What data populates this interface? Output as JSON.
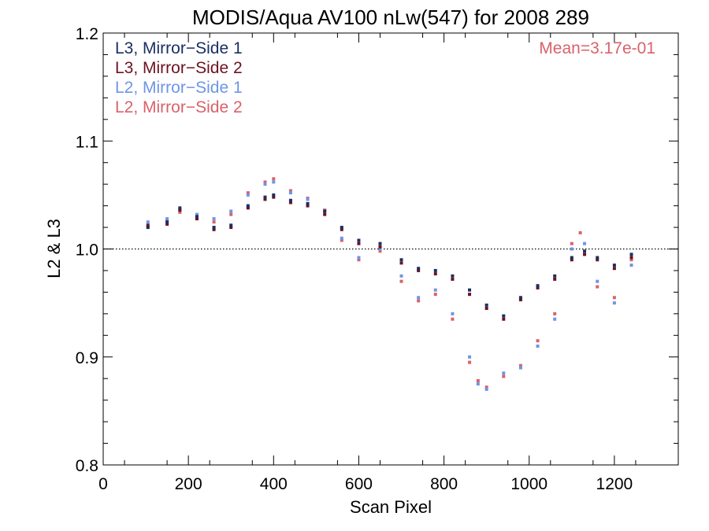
{
  "chart_data": {
    "type": "scatter",
    "title": "MODIS/Aqua AV100 nLw(547) for 2008 289",
    "xlabel": "Scan Pixel",
    "ylabel": "L2 & L3",
    "xlim": [
      0,
      1350
    ],
    "ylim": [
      0.8,
      1.2
    ],
    "x_ticks": [
      0,
      200,
      400,
      600,
      800,
      1000,
      1200
    ],
    "y_ticks": [
      0.8,
      0.9,
      1.0,
      1.1,
      1.2
    ],
    "x_tick_labels": [
      "0",
      "200",
      "400",
      "600",
      "800",
      "1000",
      "1200"
    ],
    "y_tick_labels": [
      "0.8",
      "0.9",
      "1.0",
      "1.1",
      "1.2"
    ],
    "reference_line": 1.0,
    "annotation": "Mean=3.17e-01",
    "annotation_color": "#d9626a",
    "legend_position": "top-left",
    "series": [
      {
        "name": "L3, Mirror−Side 1",
        "color": "#1a2f63",
        "points": [
          [
            105,
            1.02
          ],
          [
            150,
            1.025
          ],
          [
            180,
            1.038
          ],
          [
            220,
            1.03
          ],
          [
            260,
            1.02
          ],
          [
            300,
            1.022
          ],
          [
            340,
            1.04
          ],
          [
            380,
            1.048
          ],
          [
            400,
            1.05
          ],
          [
            440,
            1.045
          ],
          [
            480,
            1.042
          ],
          [
            520,
            1.035
          ],
          [
            560,
            1.02
          ],
          [
            600,
            1.008
          ],
          [
            650,
            1.005
          ],
          [
            700,
            0.99
          ],
          [
            740,
            0.982
          ],
          [
            780,
            0.98
          ],
          [
            820,
            0.975
          ],
          [
            860,
            0.962
          ],
          [
            900,
            0.948
          ],
          [
            940,
            0.938
          ],
          [
            980,
            0.955
          ],
          [
            1020,
            0.966
          ],
          [
            1060,
            0.975
          ],
          [
            1100,
            0.992
          ],
          [
            1130,
            0.998
          ],
          [
            1160,
            0.992
          ],
          [
            1200,
            0.985
          ],
          [
            1240,
            0.995
          ]
        ]
      },
      {
        "name": "L3, Mirror−Side 2",
        "color": "#6d1220",
        "points": [
          [
            105,
            1.022
          ],
          [
            150,
            1.023
          ],
          [
            180,
            1.036
          ],
          [
            220,
            1.028
          ],
          [
            260,
            1.018
          ],
          [
            300,
            1.02
          ],
          [
            340,
            1.038
          ],
          [
            380,
            1.046
          ],
          [
            400,
            1.048
          ],
          [
            440,
            1.043
          ],
          [
            480,
            1.04
          ],
          [
            520,
            1.032
          ],
          [
            560,
            1.018
          ],
          [
            600,
            1.005
          ],
          [
            650,
            1.002
          ],
          [
            700,
            0.987
          ],
          [
            740,
            0.98
          ],
          [
            780,
            0.977
          ],
          [
            820,
            0.972
          ],
          [
            860,
            0.958
          ],
          [
            900,
            0.945
          ],
          [
            940,
            0.935
          ],
          [
            980,
            0.953
          ],
          [
            1020,
            0.964
          ],
          [
            1060,
            0.972
          ],
          [
            1100,
            0.99
          ],
          [
            1130,
            0.995
          ],
          [
            1160,
            0.99
          ],
          [
            1200,
            0.982
          ],
          [
            1240,
            0.992
          ]
        ]
      },
      {
        "name": "L2, Mirror−Side 1",
        "color": "#6d96e6",
        "points": [
          [
            105,
            1.025
          ],
          [
            150,
            1.028
          ],
          [
            180,
            1.036
          ],
          [
            220,
            1.032
          ],
          [
            260,
            1.028
          ],
          [
            300,
            1.035
          ],
          [
            340,
            1.05
          ],
          [
            380,
            1.06
          ],
          [
            400,
            1.062
          ],
          [
            440,
            1.052
          ],
          [
            480,
            1.046
          ],
          [
            520,
            1.035
          ],
          [
            560,
            1.01
          ],
          [
            600,
            0.992
          ],
          [
            650,
            1.0
          ],
          [
            700,
            0.975
          ],
          [
            740,
            0.955
          ],
          [
            780,
            0.962
          ],
          [
            820,
            0.94
          ],
          [
            860,
            0.9
          ],
          [
            880,
            0.875
          ],
          [
            900,
            0.87
          ],
          [
            940,
            0.885
          ],
          [
            980,
            0.89
          ],
          [
            1020,
            0.91
          ],
          [
            1060,
            0.935
          ],
          [
            1100,
            1.0
          ],
          [
            1130,
            1.005
          ],
          [
            1160,
            0.97
          ],
          [
            1200,
            0.95
          ],
          [
            1240,
            0.985
          ]
        ]
      },
      {
        "name": "L2, Mirror−Side 2",
        "color": "#d9626a",
        "points": [
          [
            105,
            1.02
          ],
          [
            150,
            1.026
          ],
          [
            180,
            1.034
          ],
          [
            220,
            1.03
          ],
          [
            260,
            1.025
          ],
          [
            300,
            1.032
          ],
          [
            340,
            1.052
          ],
          [
            380,
            1.062
          ],
          [
            400,
            1.065
          ],
          [
            440,
            1.054
          ],
          [
            480,
            1.047
          ],
          [
            520,
            1.036
          ],
          [
            560,
            1.008
          ],
          [
            600,
            0.99
          ],
          [
            650,
            0.998
          ],
          [
            700,
            0.97
          ],
          [
            740,
            0.952
          ],
          [
            780,
            0.958
          ],
          [
            820,
            0.935
          ],
          [
            860,
            0.895
          ],
          [
            880,
            0.878
          ],
          [
            900,
            0.872
          ],
          [
            940,
            0.882
          ],
          [
            980,
            0.892
          ],
          [
            1020,
            0.915
          ],
          [
            1060,
            0.94
          ],
          [
            1100,
            1.005
          ],
          [
            1120,
            1.015
          ],
          [
            1160,
            0.965
          ],
          [
            1200,
            0.955
          ],
          [
            1240,
            0.99
          ]
        ]
      }
    ]
  }
}
